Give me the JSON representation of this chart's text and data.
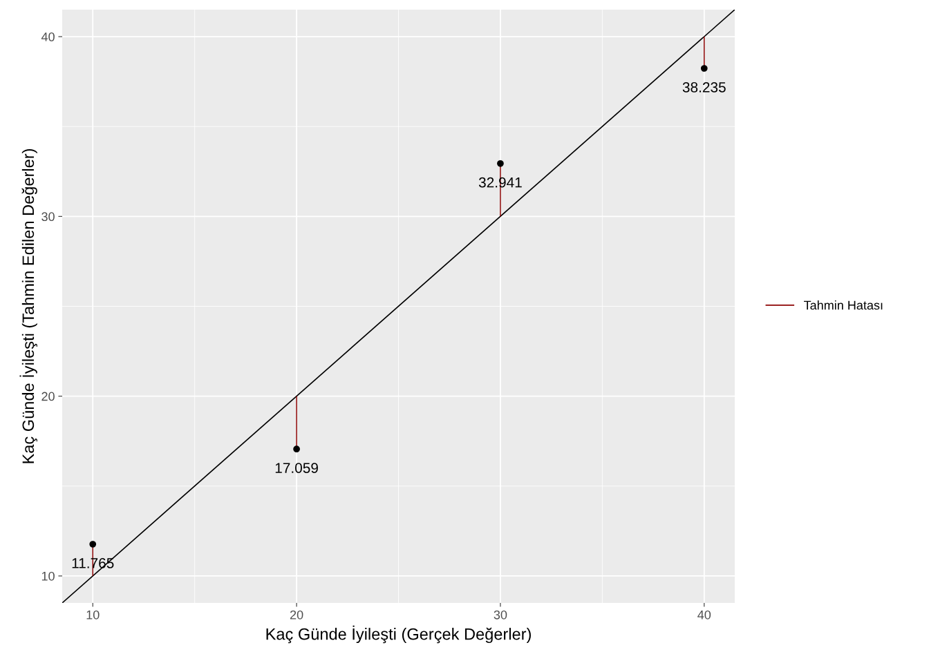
{
  "chart_data": {
    "type": "scatter",
    "xlabel": "Kaç Günde İyileşti (Gerçek Değerler)",
    "ylabel": "Kaç Günde İyileşti (Tahmin Edilen Değerler)",
    "x": [
      10,
      20,
      30,
      40
    ],
    "series": [
      {
        "type": "line",
        "color": "#000000",
        "x": [
          8.5,
          41.5
        ],
        "values": [
          8.5,
          41.5
        ],
        "marker": "none"
      },
      {
        "name": "Tahmin Hatası",
        "type": "bar",
        "color": "#8b0000",
        "base": [
          10,
          17.059,
          30,
          38.235
        ],
        "values": [
          1.765,
          2.941,
          2.941,
          1.765
        ]
      },
      {
        "marker": "circle",
        "color": "#000000",
        "values": [
          11.765,
          17.059,
          32.941,
          38.235
        ],
        "data_labels": true
      }
    ],
    "xlim": [
      8.5,
      41.5
    ],
    "ylim": [
      8.5,
      41.5
    ],
    "xticks": [
      10,
      20,
      30,
      40
    ],
    "yticks": [
      10,
      20,
      30,
      40
    ],
    "grid": true,
    "legend": "right"
  }
}
